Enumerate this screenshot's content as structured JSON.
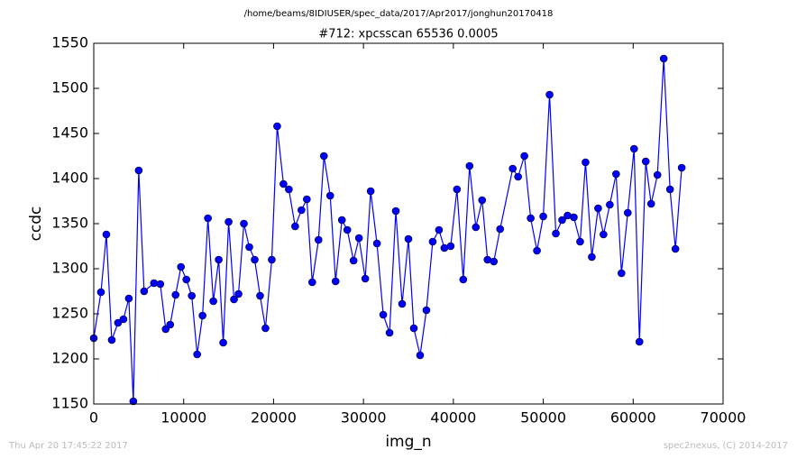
{
  "chart_data": {
    "type": "line",
    "subtitle": "/home/beams/8IDIUSER/spec_data/2017/Apr2017/jonghun20170418",
    "title": "#712: xpcsscan 65536 0.0005",
    "xlabel": "img_n",
    "ylabel": "ccdc",
    "annotations": [
      "Thu Apr 20 17:45:22 2017",
      "spec2nexus, (C) 2014-2017"
    ],
    "xlim": [
      0,
      70000
    ],
    "xticks": [
      0,
      10000,
      20000,
      30000,
      40000,
      50000,
      60000,
      70000
    ],
    "ylim": [
      1150,
      1550
    ],
    "yticks": [
      1150,
      1200,
      1250,
      1300,
      1350,
      1400,
      1450,
      1500,
      1550
    ],
    "grid": false,
    "series": [
      {
        "name": "ccdc",
        "color": "#0000ff",
        "x": [
          0,
          800,
          1400,
          2000,
          2700,
          3300,
          3900,
          4400,
          5000,
          5600,
          6700,
          7400,
          8000,
          8500,
          9100,
          9700,
          10300,
          10900,
          11500,
          12100,
          12700,
          13300,
          13900,
          14400,
          15000,
          15600,
          16100,
          16700,
          17300,
          17900,
          18500,
          19100,
          19800,
          20400,
          21100,
          21700,
          22400,
          23100,
          23700,
          24300,
          25000,
          25600,
          26300,
          26900,
          27600,
          28200,
          28900,
          29500,
          30200,
          30800,
          31500,
          32200,
          32900,
          33600,
          34300,
          35000,
          35600,
          36300,
          37000,
          37700,
          38400,
          39000,
          39700,
          40400,
          41100,
          41800,
          42500,
          43200,
          43800,
          44500,
          45200,
          46600,
          47200,
          47900,
          48600,
          49300,
          50000,
          50700,
          51400,
          52100,
          52700,
          53400,
          54100,
          54700,
          55400,
          56100,
          56700,
          57400,
          58100,
          58700,
          59400,
          60100,
          60700,
          61400,
          62000,
          62700,
          63400,
          64100,
          64700,
          65400
        ],
        "values": [
          1223,
          1274,
          1338,
          1221,
          1240,
          1244,
          1267,
          1153,
          1409,
          1275,
          1284,
          1283,
          1233,
          1238,
          1271,
          1302,
          1288,
          1270,
          1205,
          1248,
          1356,
          1264,
          1310,
          1218,
          1352,
          1266,
          1272,
          1350,
          1324,
          1310,
          1270,
          1234,
          1310,
          1458,
          1394,
          1388,
          1347,
          1365,
          1377,
          1285,
          1332,
          1425,
          1381,
          1286,
          1354,
          1343,
          1309,
          1334,
          1289,
          1386,
          1328,
          1249,
          1229,
          1364,
          1261,
          1333,
          1234,
          1204,
          1254,
          1330,
          1343,
          1323,
          1325,
          1388,
          1288,
          1414,
          1346,
          1376,
          1310,
          1308,
          1344,
          1411,
          1402,
          1425,
          1356,
          1320,
          1358,
          1493,
          1339,
          1354,
          1359,
          1357,
          1330,
          1418,
          1313,
          1367,
          1338,
          1371,
          1405,
          1295,
          1362,
          1433,
          1219,
          1419,
          1372,
          1404,
          1533,
          1388,
          1322,
          1412
        ]
      }
    ]
  }
}
